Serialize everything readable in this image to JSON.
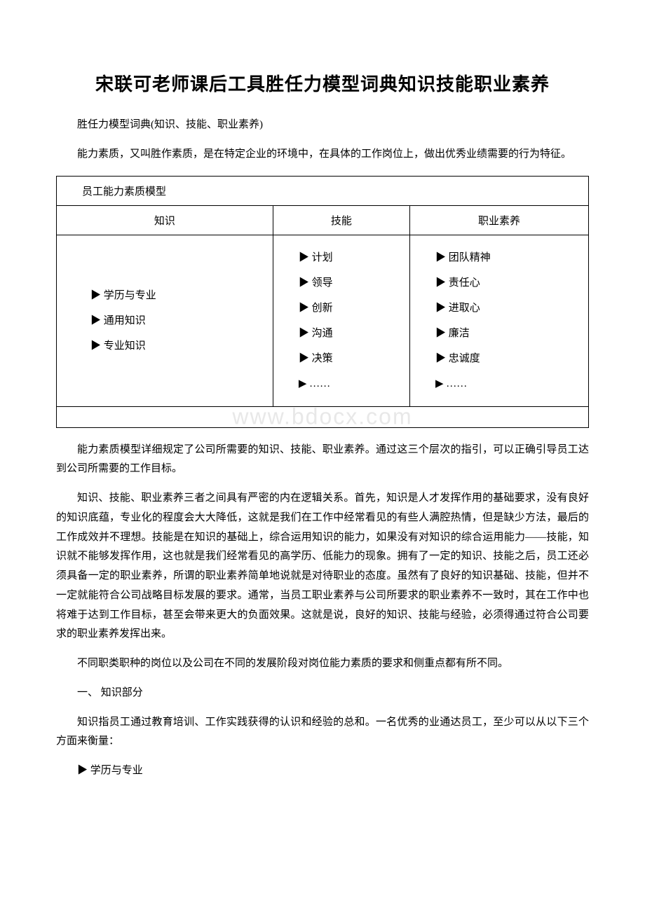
{
  "title": "宋联可老师课后工具胜任力模型词典知识技能职业素养",
  "subtitle": "胜任力模型词典(知识、技能、职业素养)",
  "intro": "能力素质，又叫胜作素质，是在特定企业的环境中，在具体的工作岗位上，做出优秀业绩需要的行为特征。",
  "table": {
    "header": "员工能力素质模型",
    "columns": [
      "知识",
      "技能",
      "职业素养"
    ],
    "col1": [
      "▶ 学历与专业",
      "▶ 通用知识",
      "▶ 专业知识"
    ],
    "col2": [
      "▶ 计划",
      "▶ 领导",
      "▶ 创新",
      "▶ 沟通",
      "▶ 决策",
      "▶ ……"
    ],
    "col3": [
      "▶ 团队精神",
      "▶ 责任心",
      "▶ 进取心",
      "▶ 廉洁",
      "▶ 忠诚度",
      "▶ ……"
    ]
  },
  "watermark": "www.bdocx.com",
  "paragraphs": {
    "p1": "能力素质模型详细规定了公司所需要的知识、技能、职业素养。通过这三个层次的指引，可以正确引导员工达到公司所需要的工作目标。",
    "p2": "知识、技能、职业素养三者之间具有严密的内在逻辑关系。首先，知识是人才发挥作用的基础要求，没有良好的知识底蕴，专业化的程度会大大降低，这就是我们在工作中经常看见的有些人满腔热情，但是缺少方法，最后的工作成效并不理想。技能是在知识的基础上，综合运用知识的能力，如果没有对知识的综合运用能力——技能，知识就不能够发挥作用，这也就是我们经常看见的高学历、低能力的现象。拥有了一定的知识、技能之后，员工还必须具备一定的职业素养，所谓的职业素养简单地说就是对待职业的态度。虽然有了良好的知识基础、技能，但并不一定就能符合公司战略目标发展的要求。通常，当员工职业素养与公司所要求的职业素养不一致时，其在工作中也将难于达到工作目标，甚至会带来更大的负面效果。这就是说，良好的知识、技能与经验，必须得通过符合公司要求的职业素养发挥出来。",
    "p3": "不同职类职种的岗位以及公司在不同的发展阶段对岗位能力素质的要求和侧重点都有所不同。",
    "section1_title": "一、 知识部分",
    "p4": "知识指员工通过教育培训、工作实践获得的认识和经验的总和。一名优秀的业通达员工，至少可以从以下三个方面来衡量：",
    "p5": "▶ 学历与专业"
  }
}
